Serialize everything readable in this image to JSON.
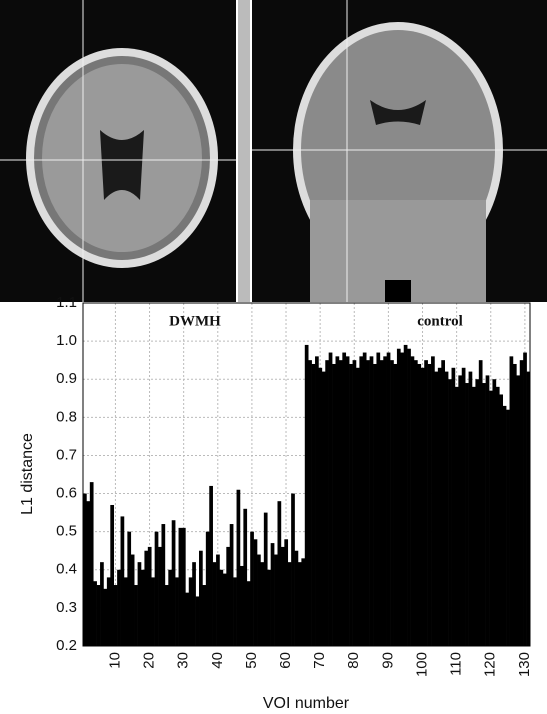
{
  "chart_data": {
    "type": "bar",
    "ylabel": "L1 distance",
    "xlabel": "VOI number",
    "annotations": [
      {
        "text": "DWMH"
      },
      {
        "text": "control"
      }
    ],
    "color": "#000000",
    "x": [
      1,
      2,
      3,
      4,
      5,
      6,
      7,
      8,
      9,
      10,
      11,
      12,
      13,
      14,
      15,
      16,
      17,
      18,
      19,
      20,
      21,
      22,
      23,
      24,
      25,
      26,
      27,
      28,
      29,
      30,
      31,
      32,
      33,
      34,
      35,
      36,
      37,
      38,
      39,
      40,
      41,
      42,
      43,
      44,
      45,
      46,
      47,
      48,
      49,
      50,
      51,
      52,
      53,
      54,
      55,
      56,
      57,
      58,
      59,
      60,
      61,
      62,
      63,
      64,
      65,
      66,
      67,
      68,
      69,
      70,
      71,
      72,
      73,
      74,
      75,
      76,
      77,
      78,
      79,
      80,
      81,
      82,
      83,
      84,
      85,
      86,
      87,
      88,
      89,
      90,
      91,
      92,
      93,
      94,
      95,
      96,
      97,
      98,
      99,
      100,
      101,
      102,
      103,
      104,
      105,
      106,
      107,
      108,
      109,
      110,
      111,
      112,
      113,
      114,
      115,
      116,
      117,
      118,
      119,
      120,
      121,
      122,
      123,
      124,
      125,
      126,
      127,
      128,
      129,
      130,
      131
    ],
    "values": [
      0.6,
      0.58,
      0.63,
      0.37,
      0.36,
      0.42,
      0.35,
      0.38,
      0.57,
      0.36,
      0.4,
      0.54,
      0.38,
      0.5,
      0.44,
      0.36,
      0.42,
      0.4,
      0.45,
      0.46,
      0.38,
      0.5,
      0.46,
      0.52,
      0.36,
      0.4,
      0.53,
      0.38,
      0.51,
      0.51,
      0.34,
      0.38,
      0.42,
      0.33,
      0.45,
      0.36,
      0.5,
      0.62,
      0.42,
      0.44,
      0.4,
      0.39,
      0.46,
      0.52,
      0.38,
      0.61,
      0.41,
      0.56,
      0.37,
      0.5,
      0.48,
      0.44,
      0.42,
      0.55,
      0.4,
      0.47,
      0.44,
      0.58,
      0.46,
      0.48,
      0.42,
      0.6,
      0.45,
      0.42,
      0.43,
      0.99,
      0.95,
      0.94,
      0.96,
      0.93,
      0.92,
      0.95,
      0.97,
      0.94,
      0.96,
      0.95,
      0.97,
      0.96,
      0.94,
      0.95,
      0.93,
      0.96,
      0.97,
      0.95,
      0.96,
      0.94,
      0.97,
      0.95,
      0.96,
      0.97,
      0.95,
      0.94,
      0.98,
      0.97,
      0.99,
      0.98,
      0.96,
      0.95,
      0.94,
      0.93,
      0.95,
      0.94,
      0.96,
      0.92,
      0.93,
      0.95,
      0.92,
      0.9,
      0.93,
      0.88,
      0.91,
      0.93,
      0.89,
      0.92,
      0.88,
      0.9,
      0.95,
      0.89,
      0.91,
      0.87,
      0.9,
      0.88,
      0.86,
      0.83,
      0.82,
      0.96,
      0.94,
      0.91,
      0.95,
      0.97,
      0.92
    ],
    "xlim": [
      0.5,
      131.5
    ],
    "xticks": [
      10,
      20,
      30,
      40,
      50,
      60,
      70,
      80,
      90,
      100,
      110,
      120,
      130
    ],
    "ylim": [
      0.2,
      1.1
    ],
    "yticks": [
      0.2,
      0.3,
      0.4,
      0.5,
      0.6,
      0.7,
      0.8,
      0.9,
      {
        "value": 1,
        "label": "1.0"
      },
      1.1
    ],
    "grid": true
  }
}
